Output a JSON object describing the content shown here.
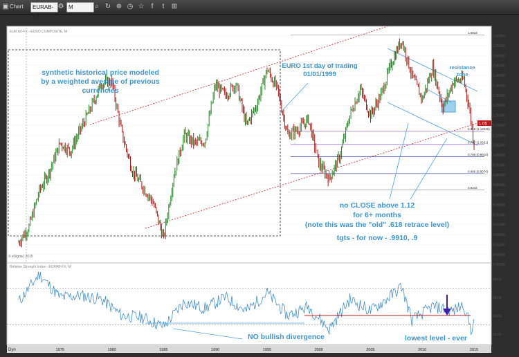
{
  "window": {
    "title": "Chart"
  },
  "toolbar": {
    "symbol": "EURAB-FX",
    "interval": "M"
  },
  "icons": [
    "chart-icon",
    "gear-icon",
    "search-icon",
    "refresh-icon",
    "plus-icon",
    "clock-icon",
    "star-icon",
    "facebook-icon",
    "twitter-icon",
    "link-icon"
  ],
  "chart_data": [
    {
      "type": "line",
      "title": "EUR A0-FX - EURO COMPOSITE, M",
      "xlabel": "",
      "ylabel": "",
      "x_ticks": [
        "1975",
        "1980",
        "1985",
        "1990",
        "1995",
        "2000",
        "2005",
        "2010",
        "2015"
      ],
      "y_ticks": [
        "1.60000",
        "1.55000",
        "1.50000",
        "1.45000",
        "1.40000",
        "1.35000",
        "1.30000",
        "1.25000",
        "1.20000",
        "1.15000",
        "1.10000",
        "1.05000",
        "1.00000",
        "0.95000",
        "0.90000",
        "0.85000",
        "0.80000",
        "0.75000",
        "0.70000",
        "0.65000",
        "0.60000",
        "0.55000",
        "0.50000",
        "0.45000"
      ],
      "ylim": [
        0.43,
        1.64
      ],
      "series": [
        {
          "x": [
            1971,
            1972,
            1973,
            1974,
            1975,
            1976,
            1977,
            1978,
            1979,
            1980,
            1981,
            1982,
            1983,
            1984,
            1985,
            1986,
            1987,
            1988,
            1989,
            1990,
            1991,
            1992,
            1993,
            1994,
            1995,
            1996,
            1997,
            1998,
            1999,
            2000,
            2001,
            2002,
            2003,
            2004,
            2005,
            2006,
            2007,
            2008,
            2009,
            2010,
            2011,
            2012,
            2013,
            2014,
            2014.6,
            2015
          ],
          "values": [
            0.56,
            0.64,
            0.82,
            0.92,
            1.06,
            1.02,
            1.13,
            1.24,
            1.36,
            1.37,
            1.1,
            0.92,
            0.84,
            0.76,
            0.58,
            0.9,
            1.1,
            1.06,
            1.07,
            1.35,
            1.3,
            1.36,
            1.15,
            1.25,
            1.43,
            1.33,
            1.1,
            1.13,
            1.18,
            0.96,
            0.88,
            0.99,
            1.2,
            1.33,
            1.2,
            1.3,
            1.46,
            1.58,
            1.4,
            1.28,
            1.44,
            1.24,
            1.37,
            1.38,
            1.22,
            1.05
          ]
        }
      ],
      "levels": [
        {
          "label": "1.6033",
          "value": 1.6033
        },
        {
          "label": "0.618 (1.12036)",
          "value": 1.12036
        },
        {
          "label": "0.707 (1.0531)",
          "value": 1.0531
        },
        {
          "label": "0.786 (0.9910)",
          "value": 0.991
        },
        {
          "label": "0.886 (0.9070)",
          "value": 0.907
        },
        {
          "label": "0.8242",
          "value": 0.8242
        }
      ],
      "last_value": "1.05"
    },
    {
      "type": "line",
      "title": "Relative Strength Index - EURAB-FX, M",
      "ylim": [
        10,
        90
      ],
      "y_ticks": [
        "80.00",
        "60.00",
        "40.00",
        "20.00"
      ],
      "reference_lines": [
        70,
        30
      ],
      "series": [
        {
          "x": [
            1971,
            1973,
            1975,
            1977,
            1979,
            1981,
            1983,
            1985,
            1987,
            1989,
            1991,
            1993,
            1995,
            1997,
            1999,
            2001,
            2003,
            2005,
            2007,
            2008,
            2009,
            2011,
            2013,
            2014,
            2014.7,
            2015
          ],
          "values": [
            55,
            85,
            60,
            62,
            58,
            40,
            38,
            28,
            55,
            48,
            60,
            45,
            65,
            40,
            50,
            25,
            58,
            45,
            62,
            72,
            35,
            50,
            45,
            52,
            25,
            32
          ]
        }
      ]
    }
  ],
  "annotations": {
    "synthetic": [
      "synthetic historical price modeled",
      "by a weighted average of previous",
      "currencies"
    ],
    "euro_day": [
      "EURO 1st day of trading",
      "01/01/1999"
    ],
    "resistance": [
      "resistance",
      "zone"
    ],
    "no_close": [
      "no CLOSE above 1.12",
      "for 6+ months",
      "(note this was the \"old\" .618 retrace level)"
    ],
    "targets": "tgts - for now - .9910, .9",
    "divergence": "NO bullish divergence",
    "lowest": "lowest level - ever",
    "watermark": "© eSignal, 2015",
    "footer_left": "Dyn"
  },
  "colors": {
    "accent_text": "#4aa3df",
    "price_up": "#1c8a1c",
    "price_down": "#b51515",
    "rsi": "#3d8fd6"
  }
}
